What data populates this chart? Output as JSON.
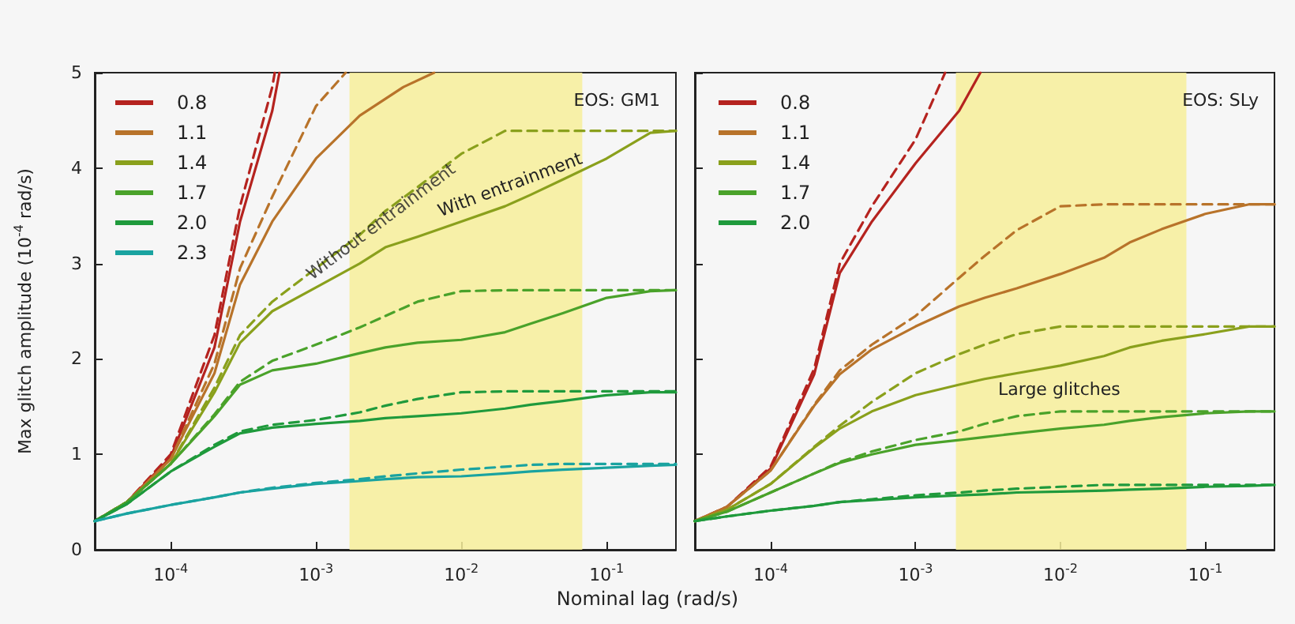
{
  "chart_data": [
    {
      "type": "line",
      "xlabel": "Nominal lag  (rad/s)",
      "ylabel": "Max glitch amplitude (10$^{-4}$ rad/s)",
      "log": "x",
      "grid": false,
      "legend": "top left",
      "marker": "none",
      "xlim": [
        3e-05,
        0.3
      ],
      "ylim": [
        0,
        5
      ],
      "xticks": [
        {
          "value": 0.0001,
          "label": "10$^{-4}$"
        },
        {
          "value": 0.001,
          "label": "10$^{-3}$"
        },
        {
          "value": 0.01,
          "label": "10$^{-2}$"
        },
        {
          "value": 0.1,
          "label": "10$^{-1}$"
        }
      ],
      "yticks": [
        0,
        1,
        2,
        3,
        4,
        5
      ],
      "x": [
        3e-05,
        5e-05,
        0.0001,
        0.0002,
        0.0003,
        0.0005,
        0.001,
        0.002,
        0.003,
        0.005,
        0.01,
        0.02,
        0.03,
        0.05,
        0.1,
        0.2,
        0.3
      ],
      "annotations": [
        "EOS: GM1",
        {
          "text": "Without entrainment",
          "x": 0.0028,
          "y": 3.44
        },
        "With entrainment"
      ],
      "bands": [
        {
          "axis": "x",
          "from": 0.0017,
          "to": 0.068,
          "color": "#f7ee9a"
        }
      ],
      "series": [
        {
          "name": "0.8",
          "color": "#b5231f",
          "line_style": "solid",
          "x": [
            3e-05,
            5e-05,
            0.0001,
            0.0002,
            0.0003,
            0.0005,
            0.00056
          ],
          "values": [
            0.3,
            0.5,
            0.97,
            2.12,
            3.44,
            4.6,
            5.0
          ]
        },
        {
          "color": "#b5231f",
          "line_style": "dashed",
          "x": [
            3e-05,
            5e-05,
            0.0001,
            0.0002,
            0.0003,
            0.0005,
            0.00052
          ],
          "values": [
            0.3,
            0.5,
            1.0,
            2.25,
            3.6,
            4.85,
            5.0
          ]
        },
        {
          "name": "1.1",
          "color": "#b8732a",
          "line_style": "solid",
          "x": [
            3e-05,
            5e-05,
            0.0001,
            0.0002,
            0.0003,
            0.0005,
            0.001,
            0.002,
            0.004,
            0.0065
          ],
          "values": [
            0.3,
            0.5,
            0.95,
            1.85,
            2.78,
            3.44,
            4.1,
            4.55,
            4.85,
            5.0
          ]
        },
        {
          "color": "#b8732a",
          "line_style": "dashed",
          "x": [
            3e-05,
            5e-05,
            0.0001,
            0.0002,
            0.0003,
            0.0005,
            0.001,
            0.0016
          ],
          "values": [
            0.3,
            0.5,
            0.95,
            1.95,
            2.95,
            3.7,
            4.65,
            5.0
          ]
        },
        {
          "name": "1.4",
          "color": "#8aa01c",
          "line_style": "solid",
          "values": [
            0.3,
            0.5,
            0.9,
            1.65,
            2.17,
            2.5,
            2.75,
            3.0,
            3.17,
            3.28,
            3.44,
            3.6,
            3.72,
            3.88,
            4.1,
            4.37,
            4.39
          ]
        },
        {
          "color": "#8aa01c",
          "line_style": "dashed",
          "values": [
            0.3,
            0.5,
            0.9,
            1.7,
            2.25,
            2.6,
            2.95,
            3.3,
            3.55,
            3.8,
            4.15,
            4.39,
            4.39,
            4.39,
            4.39,
            4.39,
            4.39
          ]
        },
        {
          "name": "1.7",
          "color": "#4aa22a",
          "line_style": "solid",
          "values": [
            0.3,
            0.5,
            0.9,
            1.4,
            1.73,
            1.88,
            1.95,
            2.06,
            2.12,
            2.17,
            2.2,
            2.28,
            2.37,
            2.48,
            2.64,
            2.71,
            2.72
          ]
        },
        {
          "color": "#4aa22a",
          "line_style": "dashed",
          "values": [
            0.3,
            0.5,
            0.9,
            1.42,
            1.76,
            1.98,
            2.15,
            2.33,
            2.45,
            2.6,
            2.71,
            2.72,
            2.72,
            2.72,
            2.72,
            2.72,
            2.72
          ]
        },
        {
          "name": "2.0",
          "color": "#1f9a3c",
          "line_style": "solid",
          "values": [
            0.3,
            0.48,
            0.82,
            1.08,
            1.22,
            1.28,
            1.32,
            1.35,
            1.38,
            1.4,
            1.43,
            1.48,
            1.52,
            1.56,
            1.62,
            1.65,
            1.65
          ]
        },
        {
          "color": "#1f9a3c",
          "line_style": "dashed",
          "values": [
            0.3,
            0.48,
            0.82,
            1.1,
            1.24,
            1.31,
            1.36,
            1.44,
            1.51,
            1.58,
            1.65,
            1.66,
            1.66,
            1.66,
            1.66,
            1.66,
            1.66
          ]
        },
        {
          "name": "2.3",
          "color": "#1aa3a0",
          "line_style": "solid",
          "values": [
            0.3,
            0.38,
            0.47,
            0.55,
            0.6,
            0.64,
            0.69,
            0.72,
            0.74,
            0.76,
            0.77,
            0.8,
            0.82,
            0.84,
            0.86,
            0.88,
            0.89
          ]
        },
        {
          "color": "#1aa3a0",
          "line_style": "dashed",
          "values": [
            0.3,
            0.38,
            0.47,
            0.55,
            0.6,
            0.65,
            0.7,
            0.74,
            0.77,
            0.8,
            0.84,
            0.87,
            0.89,
            0.9,
            0.9,
            0.9,
            0.9
          ]
        }
      ]
    },
    {
      "type": "line",
      "log": "x",
      "grid": false,
      "legend": "top left",
      "marker": "none",
      "tick_labels": "x",
      "xlim": [
        3e-05,
        0.3
      ],
      "ylim": [
        0,
        5
      ],
      "xticks": [
        {
          "value": 0.0001,
          "label": "10$^{-4}$"
        },
        {
          "value": 0.001,
          "label": "10$^{-3}$"
        },
        {
          "value": 0.01,
          "label": "10$^{-2}$"
        },
        {
          "value": 0.1,
          "label": "10$^{-1}$"
        }
      ],
      "yticks": [
        0,
        1,
        2,
        3,
        4,
        5
      ],
      "x": [
        3e-05,
        5e-05,
        0.0001,
        0.0002,
        0.0003,
        0.0005,
        0.001,
        0.002,
        0.003,
        0.005,
        0.01,
        0.02,
        0.03,
        0.05,
        0.1,
        0.2,
        0.3
      ],
      "annotations": [
        "EOS: SLy",
        "Large glitches"
      ],
      "bands": [
        {
          "axis": "x",
          "from": 0.0019,
          "to": 0.074,
          "color": "#f7ee9a"
        }
      ],
      "series": [
        {
          "name": "0.8",
          "color": "#b5231f",
          "line_style": "solid",
          "x": [
            3e-05,
            5e-05,
            0.0001,
            0.0002,
            0.0003,
            0.0005,
            0.001,
            0.002,
            0.0028
          ],
          "values": [
            0.3,
            0.45,
            0.85,
            1.84,
            2.9,
            3.44,
            4.05,
            4.6,
            5.0
          ]
        },
        {
          "color": "#b5231f",
          "line_style": "dashed",
          "x": [
            3e-05,
            5e-05,
            0.0001,
            0.0002,
            0.0003,
            0.0005,
            0.001,
            0.0016
          ],
          "values": [
            0.3,
            0.45,
            0.87,
            1.9,
            3.0,
            3.6,
            4.3,
            5.0
          ]
        },
        {
          "name": "1.1",
          "color": "#b8732a",
          "line_style": "solid",
          "values": [
            0.3,
            0.45,
            0.83,
            1.51,
            1.84,
            2.1,
            2.34,
            2.55,
            2.64,
            2.74,
            2.89,
            3.06,
            3.22,
            3.36,
            3.52,
            3.62,
            3.62
          ]
        },
        {
          "color": "#b8732a",
          "line_style": "dashed",
          "values": [
            0.3,
            0.45,
            0.83,
            1.52,
            1.88,
            2.15,
            2.45,
            2.85,
            3.08,
            3.35,
            3.6,
            3.62,
            3.62,
            3.62,
            3.62,
            3.62,
            3.62
          ]
        },
        {
          "name": "1.4",
          "color": "#8aa01c",
          "line_style": "solid",
          "values": [
            0.3,
            0.42,
            0.69,
            1.07,
            1.27,
            1.45,
            1.62,
            1.73,
            1.79,
            1.85,
            1.93,
            2.03,
            2.12,
            2.19,
            2.26,
            2.34,
            2.34
          ]
        },
        {
          "color": "#8aa01c",
          "line_style": "dashed",
          "values": [
            0.3,
            0.42,
            0.69,
            1.08,
            1.3,
            1.55,
            1.85,
            2.05,
            2.15,
            2.26,
            2.34,
            2.34,
            2.34,
            2.34,
            2.34,
            2.34,
            2.34
          ]
        },
        {
          "name": "1.7",
          "color": "#4aa22a",
          "line_style": "solid",
          "values": [
            0.3,
            0.4,
            0.6,
            0.8,
            0.91,
            1.0,
            1.1,
            1.15,
            1.18,
            1.22,
            1.27,
            1.31,
            1.35,
            1.39,
            1.43,
            1.45,
            1.45
          ]
        },
        {
          "color": "#4aa22a",
          "line_style": "dashed",
          "values": [
            0.3,
            0.4,
            0.6,
            0.8,
            0.92,
            1.03,
            1.15,
            1.24,
            1.32,
            1.4,
            1.45,
            1.45,
            1.45,
            1.45,
            1.45,
            1.45,
            1.45
          ]
        },
        {
          "name": "2.0",
          "color": "#1f9a3c",
          "line_style": "solid",
          "values": [
            0.3,
            0.35,
            0.41,
            0.46,
            0.5,
            0.52,
            0.55,
            0.57,
            0.58,
            0.6,
            0.61,
            0.62,
            0.63,
            0.64,
            0.66,
            0.67,
            0.68
          ]
        },
        {
          "color": "#1f9a3c",
          "line_style": "dashed",
          "values": [
            0.3,
            0.35,
            0.41,
            0.46,
            0.5,
            0.53,
            0.57,
            0.6,
            0.62,
            0.64,
            0.66,
            0.68,
            0.68,
            0.68,
            0.68,
            0.68,
            0.68
          ]
        }
      ]
    }
  ]
}
